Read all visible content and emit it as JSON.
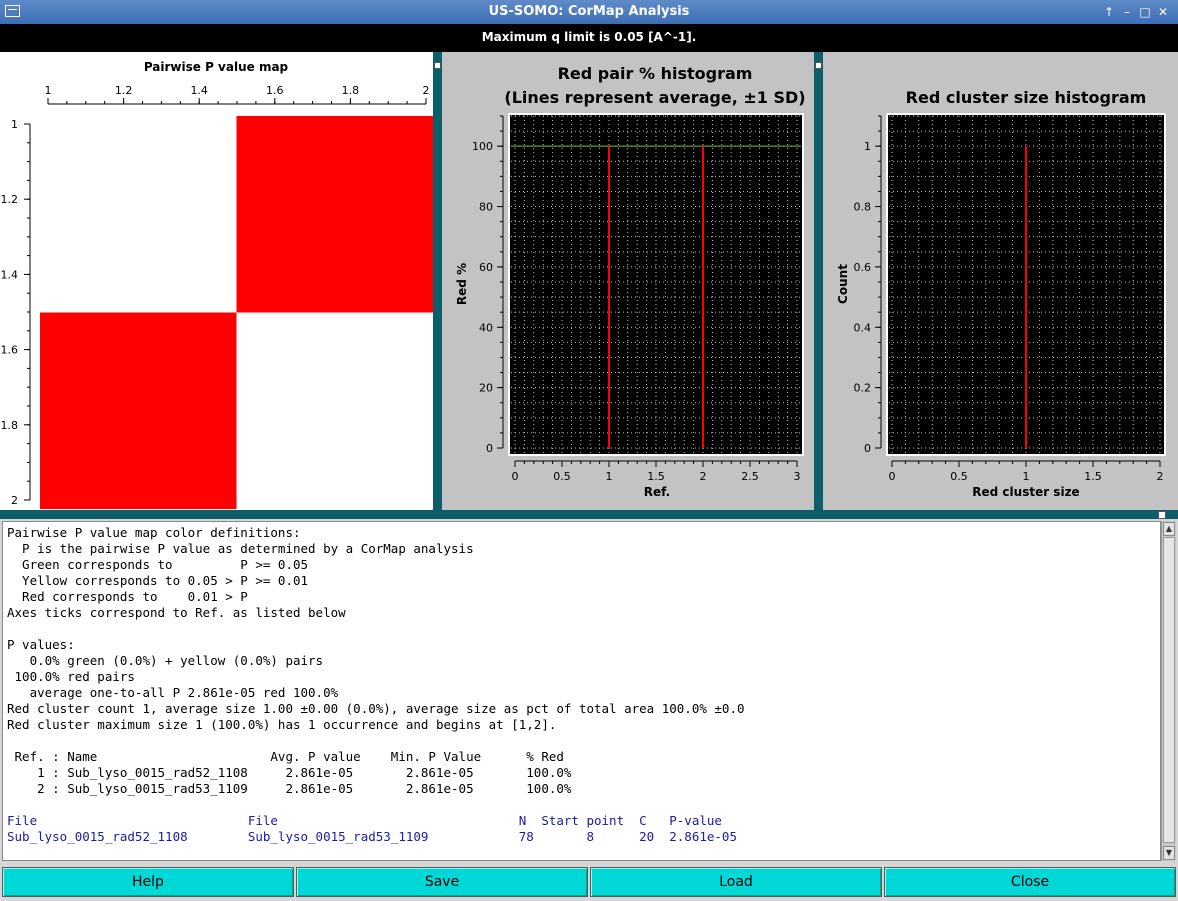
{
  "window": {
    "title": "US-SOMO: CorMap Analysis"
  },
  "info": "Maximum q limit is 0.05 [A^-1].",
  "heatmap": {
    "title": "Pairwise P value map",
    "ticks": [
      "1",
      "1.2",
      "1.4",
      "1.6",
      "1.8",
      "2"
    ],
    "cells": [
      [
        "white",
        "red"
      ],
      [
        "red",
        "white"
      ]
    ],
    "colors": {
      "red": "#ff0000",
      "white": "#ffffff"
    }
  },
  "hist1": {
    "title1": "Red pair % histogram",
    "title2": "(Lines represent average, ±1 SD)",
    "xlabel": "Ref.",
    "ylabel": "Red %",
    "xticks": [
      "0",
      "0.5",
      "1",
      "1.5",
      "2",
      "2.5",
      "3"
    ],
    "yticks": [
      "0",
      "20",
      "40",
      "60",
      "80",
      "100"
    ]
  },
  "hist2": {
    "title": "Red cluster size histogram",
    "xlabel": "Red cluster size",
    "ylabel": "Count",
    "xticks": [
      "0",
      "0.5",
      "1",
      "1.5",
      "2"
    ],
    "yticks": [
      "0",
      "0.2",
      "0.4",
      "0.6",
      "0.8",
      "1"
    ]
  },
  "chart_data": [
    {
      "type": "heatmap",
      "title": "Pairwise P value map",
      "x": [
        1,
        2
      ],
      "y": [
        1,
        2
      ],
      "values": [
        [
          "white",
          "red"
        ],
        [
          "red",
          "white"
        ]
      ],
      "xlim": [
        1,
        2
      ],
      "ylim": [
        1,
        2
      ],
      "grid": false
    },
    {
      "type": "bar",
      "title": "Red pair % histogram (Lines represent average, ±1 SD)",
      "xlabel": "Ref.",
      "ylabel": "Red %",
      "x": [
        1,
        2
      ],
      "values": [
        100,
        100
      ],
      "average_line": 100,
      "xlim": [
        0,
        3
      ],
      "ylim": [
        0,
        110
      ],
      "grid": true
    },
    {
      "type": "bar",
      "title": "Red cluster size histogram",
      "xlabel": "Red cluster size",
      "ylabel": "Count",
      "x": [
        1
      ],
      "values": [
        1
      ],
      "xlim": [
        0,
        2
      ],
      "ylim": [
        0,
        1.1
      ],
      "grid": true
    }
  ],
  "report": {
    "lines": [
      "Pairwise P value map color definitions:",
      "  P is the pairwise P value as determined by a CorMap analysis",
      "  Green corresponds to         P >= 0.05",
      "  Yellow corresponds to 0.05 > P >= 0.01",
      "  Red corresponds to    0.01 > P",
      "Axes ticks correspond to Ref. as listed below",
      "",
      "P values:",
      "   0.0% green (0.0%) + yellow (0.0%) pairs",
      " 100.0% red pairs",
      "   average one-to-all P 2.861e-05 red 100.0%",
      "Red cluster count 1, average size 1.00 ±0.00 (0.0%), average size as pct of total area 100.0% ±0.0",
      "Red cluster maximum size 1 (100.0%) has 1 occurrence and begins at [1,2].",
      "",
      " Ref. : Name                       Avg. P value    Min. P Value      % Red",
      "    1 : Sub_lyso_0015_rad52_1108     2.861e-05       2.861e-05       100.0%",
      "    2 : Sub_lyso_0015_rad53_1109     2.861e-05       2.861e-05       100.0%",
      ""
    ],
    "blue_lines": [
      "File                            File                                N  Start point  C   P-value",
      "Sub_lyso_0015_rad52_1108        Sub_lyso_0015_rad53_1109            78       8      20  2.861e-05"
    ]
  },
  "buttons": {
    "help": "Help",
    "save": "Save",
    "load": "Load",
    "close": "Close"
  }
}
